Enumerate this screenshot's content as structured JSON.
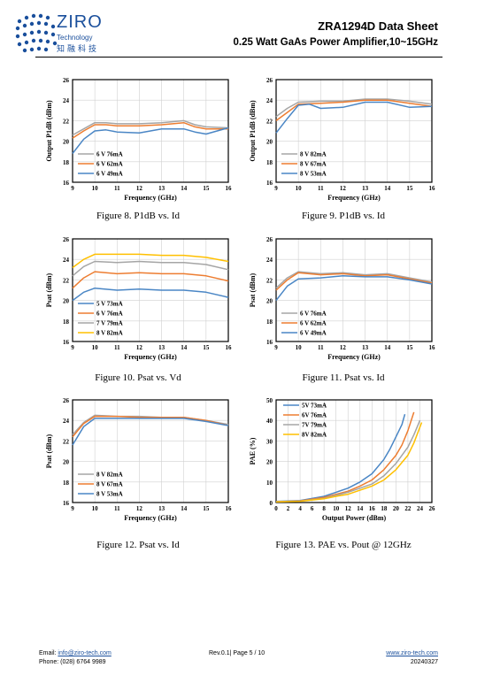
{
  "header": {
    "logo_word": "ZIRO",
    "logo_sub": "Technology",
    "logo_cn": "知融科技",
    "title": "ZRA1294D Data Sheet",
    "subtitle": "0.25 Watt GaAs Power Amplifier,10~15GHz"
  },
  "colors": {
    "blue": "#4a86c5",
    "orange": "#ed7d31",
    "gray": "#a5a5a5",
    "yellow": "#ffc000",
    "brand": "#1a4f9c"
  },
  "captions": {
    "fig8": "Figure 8. P1dB vs. Id",
    "fig9": "Figure 9. P1dB vs. Id",
    "fig10": "Figure 10. Psat vs. Vd",
    "fig11": "Figure 11. Psat vs. Id",
    "fig12": "Figure 12. Psat vs. Id",
    "fig13": "Figure 13. PAE vs. Pout @ 12GHz"
  },
  "footer": {
    "email_label": "Email:",
    "email": "info@ziro-tech.com",
    "phone_label": "Phone:",
    "phone": "(028) 6764 9989",
    "rev": "Rev.0.1| Page 5 / 10",
    "website": "www.ziro-tech.com",
    "date": "20240327"
  },
  "chart_data": [
    {
      "type": "line",
      "xlabel": "Frequency (GHz)",
      "ylabel": "Output P1dB (dBm)",
      "xlim": [
        9,
        16
      ],
      "ylim": [
        16,
        26
      ],
      "xticks": [
        9,
        10,
        11,
        12,
        13,
        14,
        15,
        16
      ],
      "yticks": [
        16,
        18,
        20,
        22,
        24,
        26
      ],
      "legend_position": "bottom-left",
      "series": [
        {
          "name": "6 V 76mA",
          "color": "#a5a5a5",
          "x": [
            9,
            9.5,
            10,
            10.5,
            11,
            12,
            13,
            14,
            14.5,
            15,
            16
          ],
          "y": [
            20.6,
            21.2,
            21.8,
            21.8,
            21.7,
            21.7,
            21.8,
            22.0,
            21.6,
            21.4,
            21.3
          ]
        },
        {
          "name": "6 V 62mA",
          "color": "#ed7d31",
          "x": [
            9,
            9.5,
            10,
            10.5,
            11,
            12,
            13,
            14,
            14.5,
            15,
            16
          ],
          "y": [
            20.3,
            21.0,
            21.6,
            21.6,
            21.5,
            21.5,
            21.6,
            21.8,
            21.4,
            21.2,
            21.2
          ]
        },
        {
          "name": "6 V 49mA",
          "color": "#4a86c5",
          "x": [
            9,
            9.5,
            10,
            10.5,
            11,
            12,
            13,
            14,
            14.5,
            15,
            16
          ],
          "y": [
            18.8,
            20.2,
            21.0,
            21.1,
            20.9,
            20.8,
            21.2,
            21.2,
            20.9,
            20.7,
            21.3
          ]
        }
      ]
    },
    {
      "type": "line",
      "xlabel": "Frequency (GHz)",
      "ylabel": "Output P1dB (dBm)",
      "xlim": [
        9,
        16
      ],
      "ylim": [
        16,
        26
      ],
      "xticks": [
        9,
        10,
        11,
        12,
        13,
        14,
        15,
        16
      ],
      "yticks": [
        16,
        18,
        20,
        22,
        24,
        26
      ],
      "legend_position": "bottom-left",
      "series": [
        {
          "name": "8 V 82mA",
          "color": "#a5a5a5",
          "x": [
            9,
            9.5,
            10,
            11,
            12,
            13,
            14,
            15,
            16
          ],
          "y": [
            22.4,
            23.2,
            23.8,
            23.9,
            23.9,
            24.1,
            24.1,
            23.9,
            23.6
          ]
        },
        {
          "name": "8 V 67mA",
          "color": "#ed7d31",
          "x": [
            9,
            9.5,
            10,
            11,
            12,
            13,
            14,
            15,
            16
          ],
          "y": [
            22.0,
            22.8,
            23.6,
            23.7,
            23.8,
            24.0,
            24.0,
            23.7,
            23.4
          ]
        },
        {
          "name": "8 V 53mA",
          "color": "#4a86c5",
          "x": [
            9,
            9.5,
            10,
            10.5,
            11,
            12,
            13,
            14,
            15,
            16
          ],
          "y": [
            20.8,
            22.2,
            23.5,
            23.6,
            23.2,
            23.3,
            23.8,
            23.8,
            23.3,
            23.4
          ]
        }
      ]
    },
    {
      "type": "line",
      "xlabel": "Frequency (GHz)",
      "ylabel": "Psat (dBm)",
      "xlim": [
        9,
        16
      ],
      "ylim": [
        16,
        26
      ],
      "xticks": [
        9,
        10,
        11,
        12,
        13,
        14,
        15,
        16
      ],
      "yticks": [
        16,
        18,
        20,
        22,
        24,
        26
      ],
      "legend_position": "bottom-left",
      "series": [
        {
          "name": "5 V 73mA",
          "color": "#4a86c5",
          "x": [
            9,
            9.5,
            10,
            11,
            12,
            13,
            14,
            15,
            16
          ],
          "y": [
            20.0,
            20.8,
            21.2,
            21.0,
            21.1,
            21.0,
            21.0,
            20.8,
            20.3
          ]
        },
        {
          "name": "6 V 76mA",
          "color": "#ed7d31",
          "x": [
            9,
            9.5,
            10,
            11,
            12,
            13,
            14,
            15,
            16
          ],
          "y": [
            21.2,
            22.2,
            22.8,
            22.6,
            22.7,
            22.6,
            22.6,
            22.4,
            21.9
          ]
        },
        {
          "name": "7 V 79mA",
          "color": "#a5a5a5",
          "x": [
            9,
            9.5,
            10,
            11,
            12,
            13,
            14,
            15,
            16
          ],
          "y": [
            22.4,
            23.3,
            23.8,
            23.7,
            23.8,
            23.7,
            23.7,
            23.5,
            23.0
          ]
        },
        {
          "name": "8 V 82mA",
          "color": "#ffc000",
          "x": [
            9,
            9.5,
            10,
            11,
            12,
            13,
            14,
            15,
            16
          ],
          "y": [
            23.2,
            24.0,
            24.5,
            24.5,
            24.5,
            24.4,
            24.4,
            24.2,
            23.8
          ]
        }
      ]
    },
    {
      "type": "line",
      "xlabel": "Frequency (GHz)",
      "ylabel": "Psat (dBm)",
      "xlim": [
        9,
        16
      ],
      "ylim": [
        16,
        26
      ],
      "xticks": [
        9,
        10,
        11,
        12,
        13,
        14,
        15,
        16
      ],
      "yticks": [
        16,
        18,
        20,
        22,
        24,
        26
      ],
      "legend_position": "bottom-left",
      "series": [
        {
          "name": "6 V 76mA",
          "color": "#a5a5a5",
          "x": [
            9,
            9.5,
            10,
            11,
            12,
            13,
            14,
            15,
            16
          ],
          "y": [
            21.2,
            22.2,
            22.8,
            22.6,
            22.7,
            22.5,
            22.6,
            22.2,
            21.8
          ]
        },
        {
          "name": "6 V 62mA",
          "color": "#ed7d31",
          "x": [
            9,
            9.5,
            10,
            11,
            12,
            13,
            14,
            15,
            16
          ],
          "y": [
            21.0,
            22.0,
            22.7,
            22.5,
            22.6,
            22.4,
            22.5,
            22.1,
            21.7
          ]
        },
        {
          "name": "6 V 49mA",
          "color": "#4a86c5",
          "x": [
            9,
            9.5,
            10,
            11,
            12,
            13,
            14,
            15,
            16
          ],
          "y": [
            20.0,
            21.4,
            22.1,
            22.2,
            22.4,
            22.3,
            22.3,
            22.0,
            21.6
          ]
        }
      ]
    },
    {
      "type": "line",
      "xlabel": "Frequency (GHz)",
      "ylabel": "Psat (dBm)",
      "xlim": [
        9,
        16
      ],
      "ylim": [
        16,
        26
      ],
      "xticks": [
        9,
        10,
        11,
        12,
        13,
        14,
        15,
        16
      ],
      "yticks": [
        16,
        18,
        20,
        22,
        24,
        26
      ],
      "legend_position": "bottom-left",
      "series": [
        {
          "name": "8 V 82mA",
          "color": "#a5a5a5",
          "x": [
            9,
            9.5,
            10,
            11,
            12,
            13,
            14,
            15,
            16
          ],
          "y": [
            22.6,
            23.8,
            24.5,
            24.4,
            24.4,
            24.3,
            24.3,
            24.0,
            23.6
          ]
        },
        {
          "name": "8 V 67mA",
          "color": "#ed7d31",
          "x": [
            9,
            9.5,
            10,
            11,
            12,
            13,
            14,
            15,
            16
          ],
          "y": [
            22.4,
            23.7,
            24.4,
            24.4,
            24.3,
            24.3,
            24.3,
            24.0,
            23.5
          ]
        },
        {
          "name": "8 V 53mA",
          "color": "#4a86c5",
          "x": [
            9,
            9.5,
            10,
            11,
            12,
            13,
            14,
            15,
            16
          ],
          "y": [
            21.6,
            23.4,
            24.2,
            24.2,
            24.2,
            24.2,
            24.2,
            23.9,
            23.5
          ]
        }
      ]
    },
    {
      "type": "line",
      "xlabel": "Output Power (dBm)",
      "ylabel": "PAE (%)",
      "xlim": [
        0,
        26
      ],
      "ylim": [
        0,
        50
      ],
      "xticks": [
        0,
        2,
        4,
        6,
        8,
        10,
        12,
        14,
        16,
        18,
        20,
        22,
        24,
        26
      ],
      "yticks": [
        0,
        10,
        20,
        30,
        40,
        50
      ],
      "legend_position": "top-left",
      "series": [
        {
          "name": "5V 73mA",
          "color": "#4a86c5",
          "x": [
            0,
            4,
            8,
            10,
            12,
            14,
            16,
            18,
            19,
            20,
            21,
            21.5
          ],
          "y": [
            0.5,
            1,
            3,
            5,
            7,
            10,
            14,
            21,
            26,
            32,
            38,
            43
          ]
        },
        {
          "name": "6V 76mA",
          "color": "#ed7d31",
          "x": [
            0,
            4,
            8,
            10,
            12,
            14,
            16,
            18,
            20,
            21,
            22,
            23
          ],
          "y": [
            0.4,
            0.8,
            2.5,
            4,
            5.5,
            8,
            11,
            16,
            23,
            28,
            35,
            44
          ]
        },
        {
          "name": "7V 79mA",
          "color": "#a5a5a5",
          "x": [
            0,
            4,
            8,
            10,
            12,
            14,
            16,
            18,
            20,
            22,
            23,
            24
          ],
          "y": [
            0.3,
            0.7,
            2,
            3.5,
            5,
            7,
            9,
            13,
            19,
            27,
            33,
            40
          ]
        },
        {
          "name": "8V 82mA",
          "color": "#ffc000",
          "x": [
            0,
            4,
            8,
            10,
            12,
            14,
            16,
            18,
            20,
            22,
            23,
            24.3
          ],
          "y": [
            0.3,
            0.6,
            1.8,
            3,
            4,
            6,
            8,
            11,
            16,
            23,
            29,
            39
          ]
        }
      ]
    }
  ]
}
